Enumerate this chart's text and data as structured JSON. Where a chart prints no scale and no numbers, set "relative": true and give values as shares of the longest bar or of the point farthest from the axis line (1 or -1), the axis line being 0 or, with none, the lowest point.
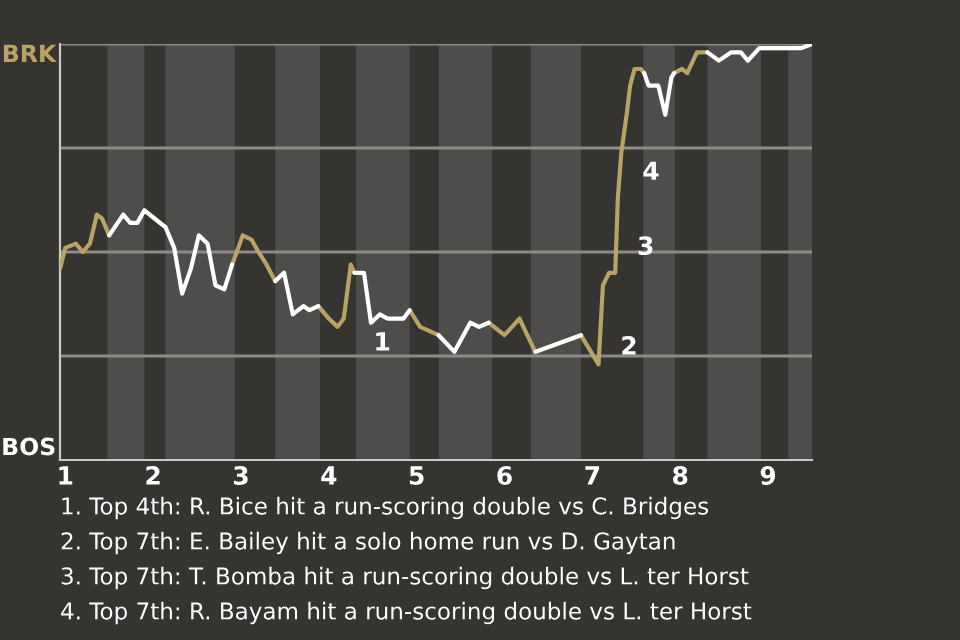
{
  "chart_data": {
    "type": "line",
    "relative": true,
    "xlim": [
      0.94,
      9.5
    ],
    "xticks": [
      1,
      2,
      3,
      4,
      5,
      6,
      7,
      8,
      9
    ],
    "legend": false,
    "series": [
      {
        "color": "#b8a265",
        "x": [
          0.94,
          1.0,
          1.12,
          1.2,
          1.28,
          1.36,
          1.42,
          1.5,
          1.66,
          1.74,
          1.82,
          1.9,
          2.14,
          2.24,
          2.33,
          2.43,
          2.52,
          2.62,
          2.71,
          2.81,
          2.9,
          3.02,
          3.12,
          3.2,
          3.29,
          3.39,
          3.49,
          3.59,
          3.71,
          3.78,
          3.88,
          4.0,
          4.1,
          4.17,
          4.25,
          4.29,
          4.4,
          4.48,
          4.58,
          4.67,
          4.85,
          4.92,
          5.04,
          5.25,
          5.43,
          5.61,
          5.71,
          5.82,
          6.0,
          6.17,
          6.35,
          6.87,
          7.07,
          7.12,
          7.19,
          7.26,
          7.29,
          7.33,
          7.39,
          7.43,
          7.48,
          7.55,
          7.59,
          7.64,
          7.75,
          7.83,
          7.9,
          7.93,
          8.02,
          8.08,
          8.19,
          8.31,
          8.44,
          8.58,
          8.69,
          8.77,
          8.9,
          8.92,
          9.23
        ],
        "values": [
          0.46,
          0.51,
          0.52,
          0.5,
          0.52,
          0.59,
          0.58,
          0.54,
          null,
          null,
          null,
          0.6,
          0.56,
          null,
          null,
          null,
          null,
          null,
          null,
          null,
          0.47,
          0.54,
          0.53,
          0.5,
          0.47,
          0.43,
          null,
          null,
          null,
          null,
          0.37,
          0.34,
          0.32,
          0.34,
          0.47,
          0.45,
          null,
          null,
          null,
          null,
          null,
          0.36,
          0.32,
          0.3,
          null,
          null,
          null,
          0.33,
          0.3,
          0.34,
          0.26,
          0.3,
          0.23,
          0.42,
          0.45,
          0.45,
          0.63,
          0.74,
          0.83,
          0.9,
          0.94,
          0.94,
          0.93,
          null,
          null,
          null,
          null,
          0.93,
          0.94,
          0.93,
          0.98,
          0.98,
          null,
          null,
          null,
          null,
          null,
          0.99,
          0.99
        ]
      },
      {
        "color": "#ffffff",
        "x": [
          1.5,
          1.66,
          1.74,
          1.82,
          1.9,
          2.14,
          2.24,
          2.33,
          2.43,
          2.52,
          2.62,
          2.71,
          2.81,
          2.9,
          3.02,
          3.12,
          3.2,
          3.29,
          3.39,
          3.49,
          3.59,
          3.71,
          3.78,
          3.88,
          4.0,
          4.1,
          4.17,
          4.25,
          4.29,
          4.4,
          4.48,
          4.58,
          4.67,
          4.85,
          4.92,
          5.04,
          5.25,
          5.43,
          5.61,
          5.71,
          5.82,
          6.0,
          6.17,
          6.35,
          6.87,
          7.07,
          7.12,
          7.19,
          7.26,
          7.29,
          7.33,
          7.39,
          7.43,
          7.48,
          7.55,
          7.59,
          7.64,
          7.75,
          7.83,
          7.9,
          7.93,
          8.02,
          8.08,
          8.19,
          8.31,
          8.44,
          8.58,
          8.69,
          8.77,
          8.9,
          8.92,
          9.23,
          9.38,
          9.5
        ],
        "values": [
          0.54,
          0.59,
          0.57,
          0.57,
          0.6,
          0.56,
          0.51,
          0.4,
          0.46,
          0.54,
          0.52,
          0.42,
          0.41,
          0.47,
          null,
          null,
          null,
          null,
          0.43,
          0.45,
          0.35,
          0.37,
          0.36,
          0.37,
          null,
          null,
          null,
          null,
          0.45,
          0.45,
          0.33,
          0.35,
          0.34,
          0.34,
          0.36,
          null,
          0.3,
          0.26,
          0.33,
          0.32,
          0.33,
          null,
          null,
          0.26,
          0.3,
          null,
          null,
          null,
          null,
          null,
          null,
          null,
          null,
          null,
          null,
          0.93,
          0.9,
          0.9,
          0.83,
          0.92,
          0.93,
          null,
          null,
          null,
          0.98,
          0.96,
          0.98,
          0.98,
          0.96,
          0.99,
          0.99,
          0.99,
          0.99,
          1.0
        ]
      }
    ],
    "ref_lines": [
      {
        "axis": "y",
        "value": 0.25,
        "color": "#8c8b88"
      },
      {
        "axis": "y",
        "value": 0.5,
        "color": "#8c8b88"
      },
      {
        "axis": "y",
        "value": 0.75,
        "color": "#8c8b88"
      },
      {
        "axis": "y",
        "value": 1,
        "color": "#8c8b88"
      }
    ],
    "bands": [
      {
        "axis": "x",
        "from": 1.48,
        "to": 1.9,
        "color": "#4e4d4b"
      },
      {
        "axis": "x",
        "from": 2.14,
        "to": 2.93,
        "color": "#4e4d4b"
      },
      {
        "axis": "x",
        "from": 3.39,
        "to": 3.9,
        "color": "#4e4d4b"
      },
      {
        "axis": "x",
        "from": 4.31,
        "to": 4.92,
        "color": "#4e4d4b"
      },
      {
        "axis": "x",
        "from": 5.25,
        "to": 5.86,
        "color": "#4e4d4b"
      },
      {
        "axis": "x",
        "from": 6.3,
        "to": 6.87,
        "color": "#4e4d4b"
      },
      {
        "axis": "x",
        "from": 7.58,
        "to": 7.94,
        "color": "#4e4d4b"
      },
      {
        "axis": "x",
        "from": 8.31,
        "to": 8.92,
        "color": "#4e4d4b"
      },
      {
        "axis": "x",
        "from": 9.23,
        "to": 9.5,
        "color": "#4e4d4b"
      }
    ],
    "annotations": [
      "BRK",
      "BOS",
      {
        "text": "1",
        "x": 4.35,
        "y": 0.3
      },
      {
        "text": "2",
        "x": 7.16,
        "y": 0.29
      },
      {
        "text": "3",
        "x": 7.35,
        "y": 0.53
      },
      {
        "text": "4",
        "x": 7.41,
        "y": 0.71
      },
      "1. Top 4th: R. Bice hit a run-scoring double vs C. Bridges",
      "2. Top 7th: E. Bailey hit a solo home run vs D. Gaytan",
      "3. Top 7th: T. Bomba hit a run-scoring double vs L. ter Horst",
      "4. Top 7th: R. Bayam hit a run-scoring double vs L. ter Horst"
    ]
  }
}
